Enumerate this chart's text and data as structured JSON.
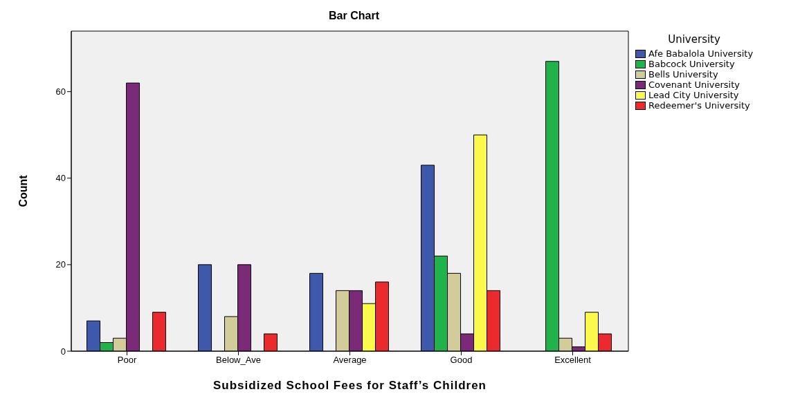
{
  "chart_data": {
    "type": "bar",
    "title": "Bar Chart",
    "xlabel": "Subsidized School Fees for Staff’s Children",
    "ylabel": "Count",
    "legend_title": "University",
    "categories": [
      "Poor",
      "Below_Ave",
      "Average",
      "Good",
      "Excellent"
    ],
    "series": [
      {
        "name": "Afe Babalola University",
        "color": "#3e58ac",
        "values": [
          7,
          20,
          18,
          43,
          0
        ]
      },
      {
        "name": "Babcock University",
        "color": "#21b24b",
        "values": [
          2,
          0,
          0,
          22,
          67
        ]
      },
      {
        "name": "Bells University",
        "color": "#d2cb9a",
        "values": [
          3,
          8,
          14,
          18,
          3
        ]
      },
      {
        "name": "Covenant University",
        "color": "#7b2a78",
        "values": [
          62,
          20,
          14,
          4,
          1
        ]
      },
      {
        "name": "Lead City University",
        "color": "#fbf94c",
        "values": [
          0,
          0,
          11,
          50,
          9
        ]
      },
      {
        "name": "Redeemer's University",
        "color": "#eb2a2e",
        "values": [
          9,
          4,
          16,
          14,
          4
        ]
      }
    ],
    "ylim": [
      0,
      74
    ],
    "yticks": [
      0,
      20,
      40,
      60
    ],
    "grid": false,
    "legend": "top right"
  }
}
